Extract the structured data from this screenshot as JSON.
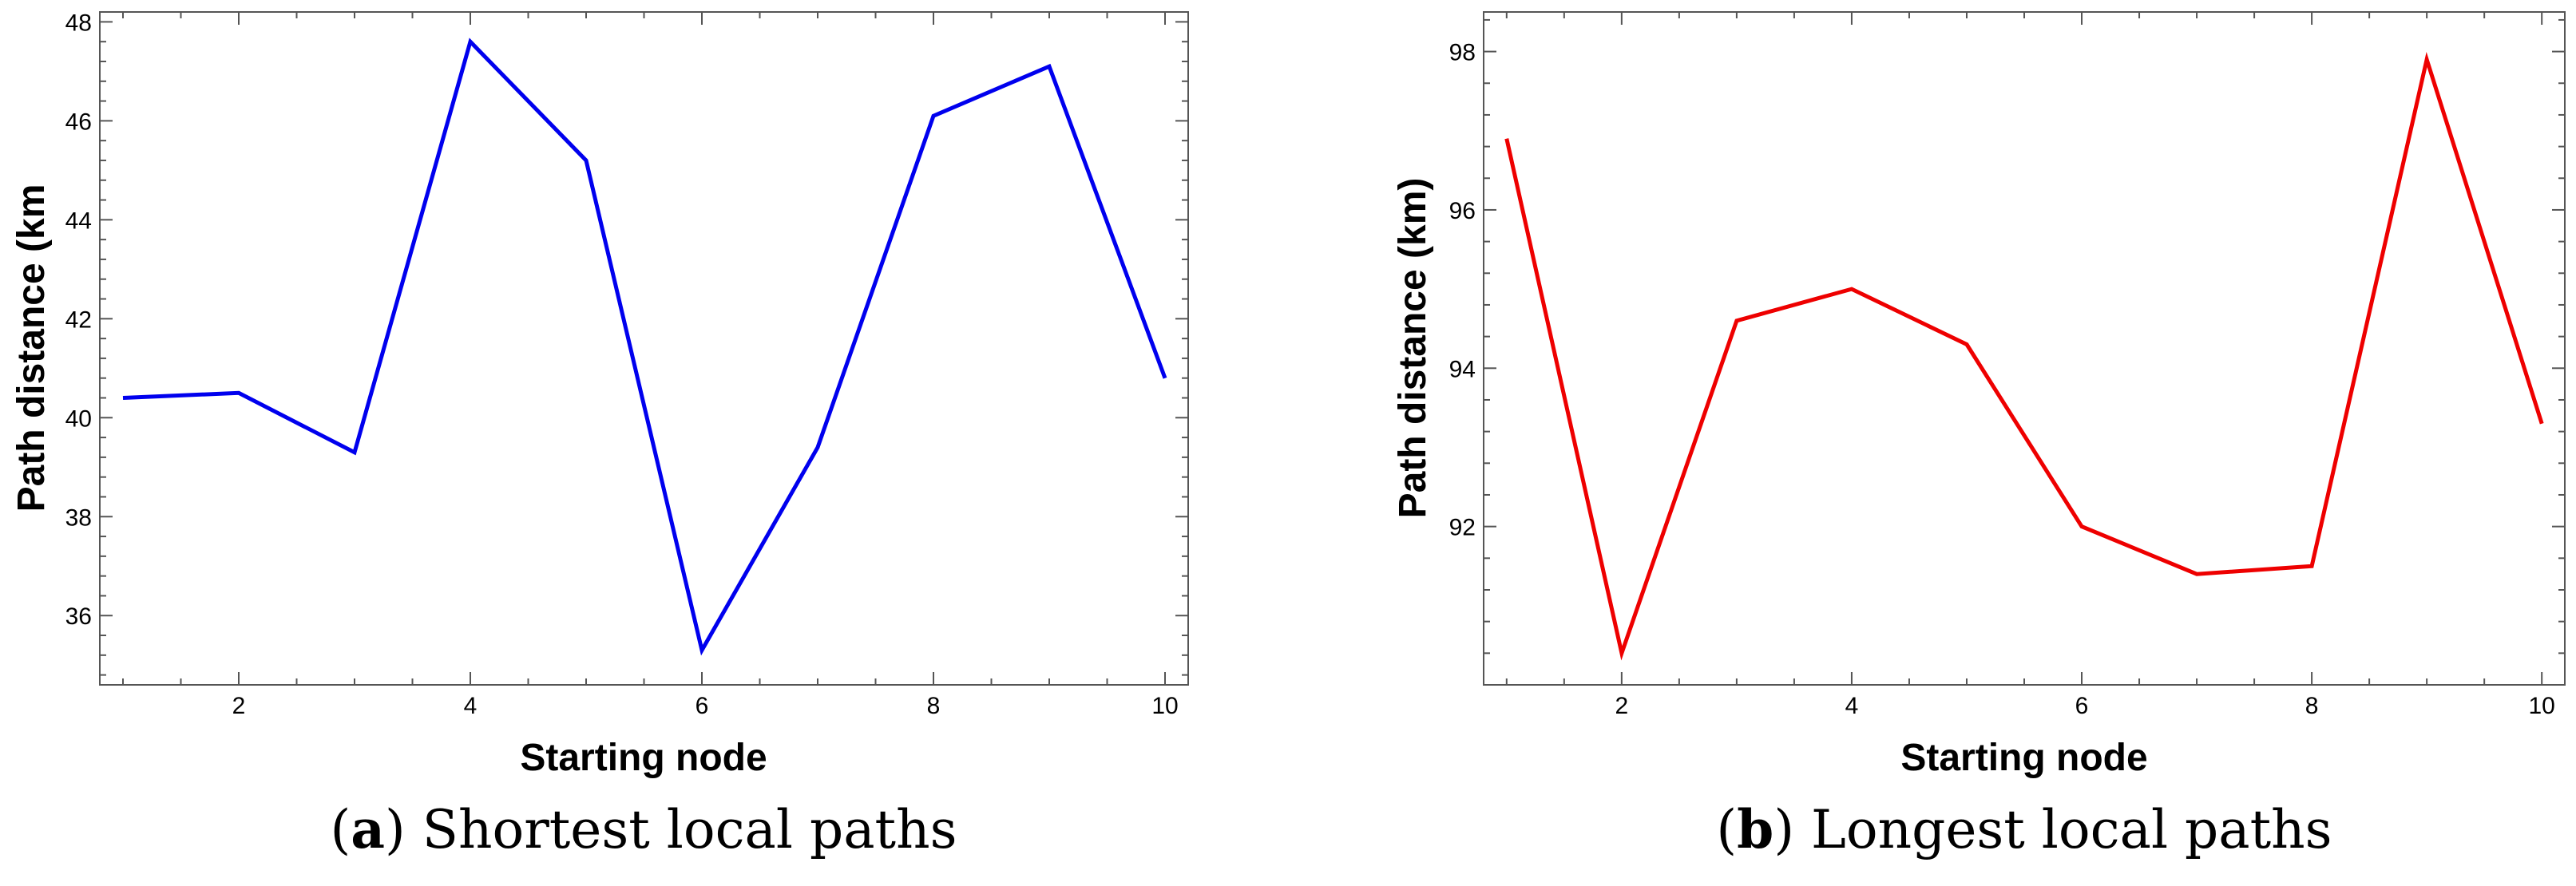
{
  "chart_data": [
    {
      "type": "line",
      "caption_letter": "a",
      "caption_text": "Shortest local paths",
      "xlabel": "Starting node",
      "ylabel": "Path distance (km",
      "xlim": [
        0.8,
        10.2
      ],
      "ylim": [
        34.6,
        48.2
      ],
      "xticks": [
        2,
        4,
        6,
        8,
        10
      ],
      "yticks": [
        36,
        38,
        40,
        42,
        44,
        46,
        48
      ],
      "grid": false,
      "color": "#0000ee",
      "series": [
        {
          "x": [
            1,
            2,
            3,
            4,
            5,
            6,
            7,
            8,
            9,
            10
          ],
          "values": [
            40.4,
            40.5,
            39.3,
            47.6,
            45.2,
            35.3,
            39.4,
            46.1,
            47.1,
            40.8
          ]
        }
      ]
    },
    {
      "type": "line",
      "caption_letter": "b",
      "caption_text": "Longest local paths",
      "xlabel": "Starting node",
      "ylabel": "Path distance (km)",
      "xlim": [
        0.8,
        10.2
      ],
      "ylim": [
        90.0,
        98.5
      ],
      "xticks": [
        2,
        4,
        6,
        8,
        10
      ],
      "yticks": [
        92,
        94,
        96,
        98
      ],
      "grid": false,
      "color": "#ee0000",
      "series": [
        {
          "x": [
            1,
            2,
            3,
            4,
            5,
            6,
            7,
            8,
            9,
            10
          ],
          "values": [
            96.9,
            90.4,
            94.6,
            95.0,
            94.3,
            92.0,
            91.4,
            91.5,
            97.9,
            93.3
          ]
        }
      ]
    }
  ]
}
